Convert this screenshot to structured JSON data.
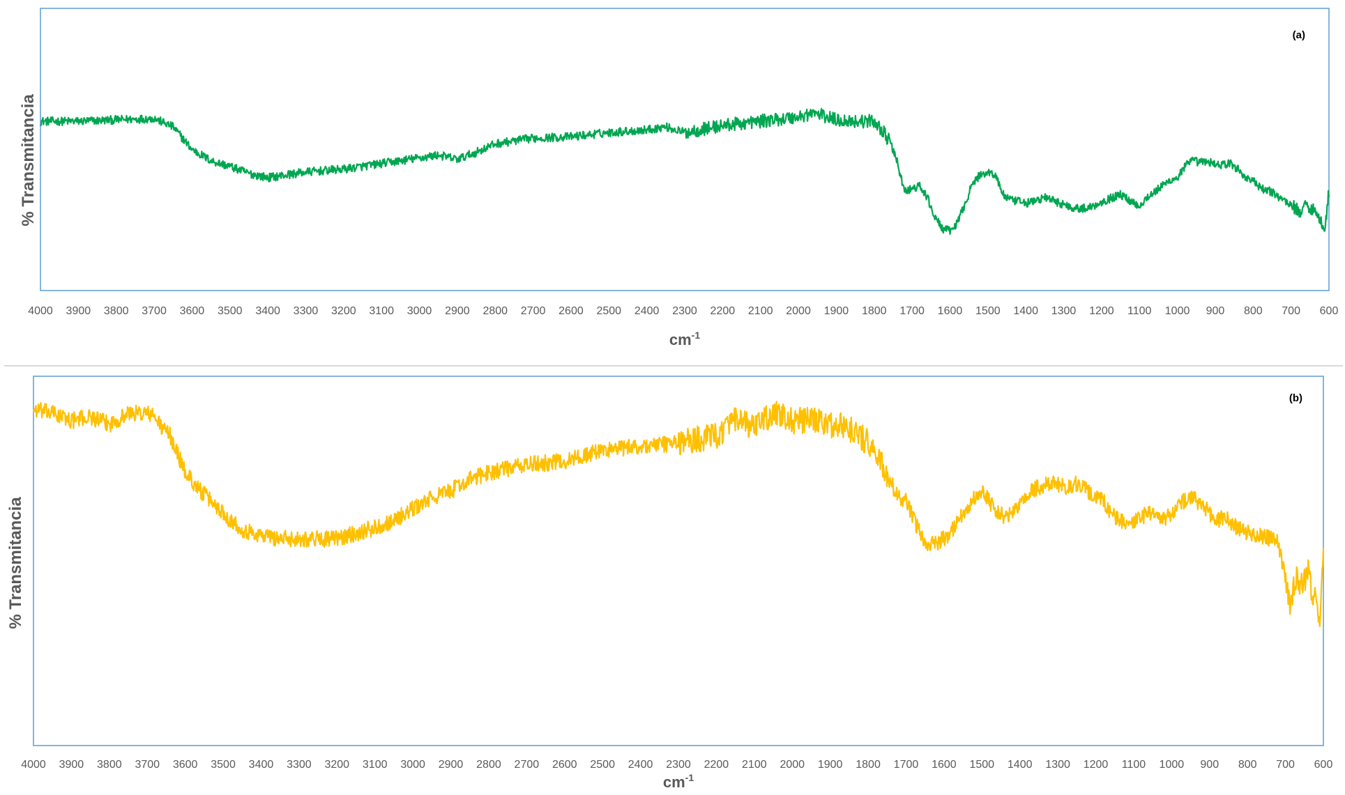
{
  "chart_data": [
    {
      "type": "line",
      "title": "(a)",
      "xlabel": "cm",
      "xlabel_sup": "-1",
      "ylabel": "% Transmitancia",
      "xlim": [
        4000,
        600
      ],
      "x_reversed": true,
      "y_tick_labels": false,
      "grid": false,
      "xticks": [
        4000,
        3900,
        3800,
        3700,
        3600,
        3500,
        3400,
        3300,
        3200,
        3100,
        3000,
        2900,
        2800,
        2700,
        2600,
        2500,
        2400,
        2300,
        2200,
        2100,
        2000,
        1900,
        1800,
        1700,
        1600,
        1500,
        1400,
        1300,
        1200,
        1100,
        1000,
        900,
        800,
        700,
        600
      ],
      "ylim": [
        0,
        100
      ],
      "color": "#00a651",
      "noise": 3,
      "series": [
        {
          "x": [
            4000,
            3900,
            3800,
            3700,
            3650,
            3600,
            3550,
            3500,
            3450,
            3400,
            3350,
            3300,
            3200,
            3100,
            3000,
            2950,
            2900,
            2850,
            2800,
            2700,
            2600,
            2500,
            2400,
            2350,
            2300,
            2200,
            2100,
            2000,
            1960,
            1900,
            1850,
            1800,
            1780,
            1760,
            1740,
            1720,
            1700,
            1680,
            1660,
            1640,
            1620,
            1600,
            1580,
            1560,
            1540,
            1520,
            1500,
            1480,
            1460,
            1440,
            1420,
            1400,
            1380,
            1350,
            1320,
            1300,
            1280,
            1250,
            1220,
            1200,
            1180,
            1150,
            1120,
            1100,
            1080,
            1060,
            1040,
            1020,
            1000,
            980,
            960,
            940,
            920,
            900,
            880,
            860,
            840,
            820,
            800,
            780,
            760,
            740,
            720,
            700,
            680,
            660,
            640,
            630,
            620,
            610,
            600
          ],
          "y": [
            60,
            60,
            60.5,
            61,
            58,
            50,
            46,
            44,
            41.5,
            40,
            41,
            42,
            43,
            45,
            47,
            48,
            46.5,
            49,
            52,
            54,
            54.5,
            56,
            57,
            58,
            56,
            58.5,
            60,
            61.5,
            63,
            60.5,
            60,
            60,
            57,
            53,
            46,
            35,
            36,
            37,
            33,
            26,
            22,
            21,
            24,
            31,
            38,
            41,
            42,
            41,
            34,
            32,
            31.5,
            31,
            31.5,
            33,
            31.5,
            30.5,
            29.5,
            29,
            30,
            31.5,
            32.5,
            34,
            31.5,
            30,
            33,
            35,
            37,
            39,
            40,
            44,
            46,
            45.5,
            45.5,
            45,
            44.5,
            45,
            43,
            40,
            39,
            36,
            35.5,
            34,
            32,
            30.5,
            28,
            30,
            29,
            26,
            24,
            23,
            35
          ]
        }
      ]
    },
    {
      "type": "line",
      "title": "(b)",
      "xlabel": "cm",
      "xlabel_sup": "-1",
      "ylabel": "% Transmitancia",
      "xlim": [
        4000,
        600
      ],
      "x_reversed": true,
      "y_tick_labels": false,
      "grid": false,
      "xticks": [
        4000,
        3900,
        3800,
        3700,
        3600,
        3500,
        3400,
        3300,
        3200,
        3100,
        3000,
        2900,
        2800,
        2700,
        2600,
        2500,
        2400,
        2300,
        2200,
        2100,
        2000,
        1900,
        1800,
        1700,
        1600,
        1500,
        1400,
        1300,
        1200,
        1100,
        1000,
        900,
        800,
        700,
        600
      ],
      "ylim": [
        0,
        100
      ],
      "color": "#ffc000",
      "noise": 4.5,
      "series": [
        {
          "x": [
            4000,
            3950,
            3900,
            3850,
            3800,
            3750,
            3700,
            3680,
            3660,
            3640,
            3620,
            3600,
            3560,
            3520,
            3480,
            3440,
            3400,
            3350,
            3300,
            3250,
            3200,
            3150,
            3100,
            3050,
            3000,
            2950,
            2900,
            2850,
            2800,
            2750,
            2700,
            2600,
            2500,
            2400,
            2300,
            2200,
            2150,
            2100,
            2050,
            2000,
            1950,
            1900,
            1850,
            1800,
            1780,
            1760,
            1740,
            1720,
            1700,
            1680,
            1660,
            1640,
            1620,
            1600,
            1580,
            1560,
            1540,
            1520,
            1500,
            1480,
            1460,
            1440,
            1420,
            1400,
            1380,
            1350,
            1320,
            1300,
            1280,
            1250,
            1220,
            1200,
            1180,
            1150,
            1120,
            1100,
            1080,
            1060,
            1040,
            1020,
            1000,
            980,
            960,
            940,
            920,
            900,
            880,
            860,
            840,
            820,
            800,
            780,
            760,
            740,
            720,
            700,
            690,
            680,
            670,
            660,
            650,
            640,
            630,
            620,
            610,
            600
          ],
          "y": [
            91,
            90,
            88,
            89,
            87,
            90,
            90,
            89,
            86,
            84,
            79,
            74,
            69,
            65,
            61,
            58,
            57,
            56,
            56,
            56,
            56,
            57.5,
            59,
            61,
            64,
            67,
            69,
            72,
            74,
            75,
            76,
            77,
            80,
            81,
            82,
            84,
            88,
            86,
            90,
            88,
            88,
            87,
            86,
            82,
            79,
            75,
            71,
            67,
            66,
            61,
            57,
            54,
            55,
            56,
            58,
            62,
            64,
            67,
            69,
            66,
            63,
            62,
            63,
            65,
            68,
            70,
            71,
            70.5,
            70,
            71,
            69,
            67,
            66,
            62,
            60,
            60,
            62,
            63,
            62,
            61,
            63,
            65,
            67,
            67,
            65,
            63,
            61,
            62,
            60,
            58.5,
            57.5,
            57,
            56.5,
            56,
            55,
            45,
            38,
            42,
            45,
            43,
            45,
            47,
            42,
            40,
            32,
            50
          ]
        }
      ]
    }
  ]
}
